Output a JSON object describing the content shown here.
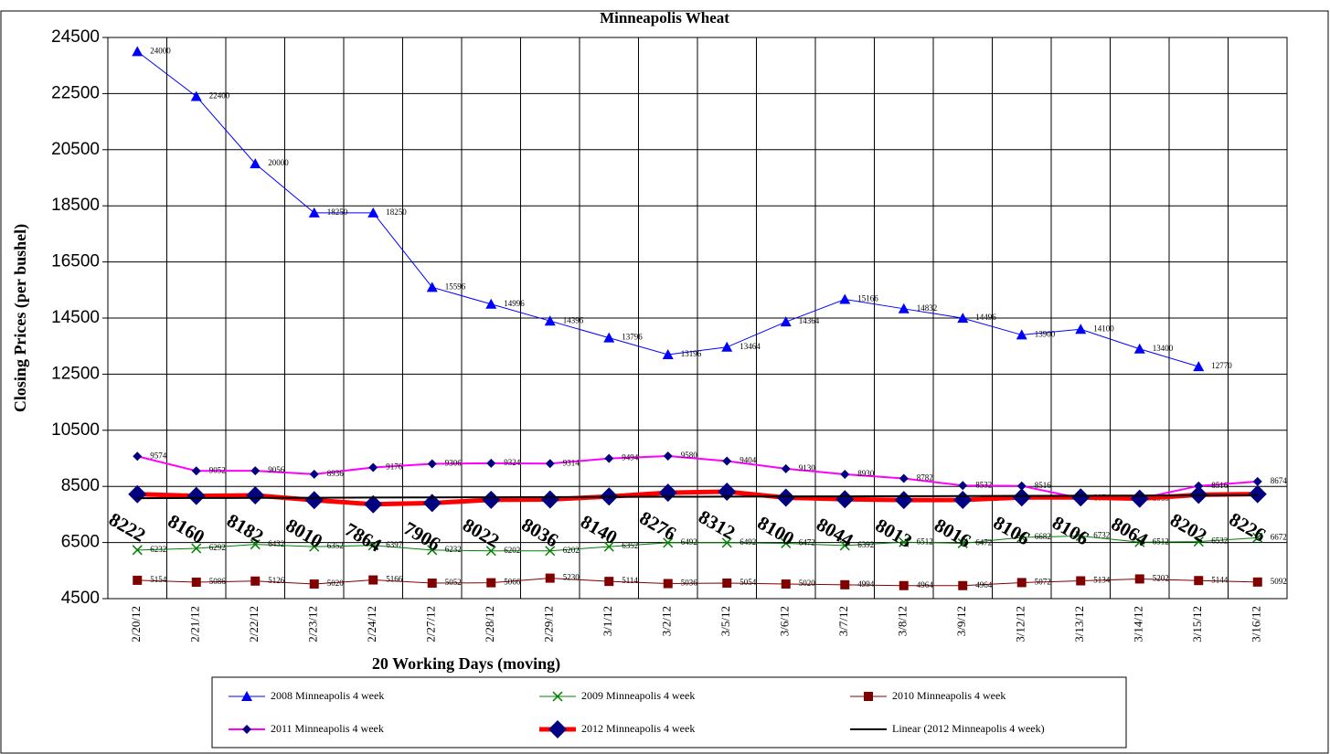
{
  "chart_data": {
    "type": "line",
    "title": "Minneapolis Wheat",
    "y_label": "Closing Prices (per bushel)",
    "x_label": "20 Working Days (moving)",
    "categories": [
      "2/20/12",
      "2/21/12",
      "2/22/12",
      "2/23/12",
      "2/24/12",
      "2/27/12",
      "2/28/12",
      "2/29/12",
      "3/1/12",
      "3/2/12",
      "3/5/12",
      "3/6/12",
      "3/7/12",
      "3/8/12",
      "3/9/12",
      "3/12/12",
      "3/13/12",
      "3/14/12",
      "3/15/12",
      "3/16/12"
    ],
    "ylim": [
      4500,
      24500
    ],
    "yticks": [
      4500,
      6500,
      8500,
      10500,
      12500,
      14500,
      16500,
      18500,
      20500,
      22500,
      24500
    ],
    "grid": true,
    "legend": "bottom",
    "series": [
      {
        "name": "2008 Minneapolis 4 week",
        "color": "#0000ff",
        "marker": "triangle",
        "line_width": 1,
        "data_labels": true,
        "values": [
          24000,
          22400,
          20000,
          18250,
          18250,
          15596,
          14996,
          14396,
          13796,
          13196,
          13464,
          14364,
          15166,
          14832,
          14496,
          13900,
          14100,
          13400,
          12770,
          null
        ]
      },
      {
        "name": "2009 Minneapolis 4 week",
        "color": "#008000",
        "marker": "x",
        "line_width": 1,
        "data_labels": true,
        "values": [
          6232,
          6292,
          6432,
          6352,
          6397,
          6232,
          6202,
          6202,
          6352,
          6492,
          6492,
          6472,
          6392,
          6512,
          6472,
          6682,
          6732,
          6512,
          6532,
          6672
        ]
      },
      {
        "name": "2010 Minneapolis 4 week",
        "color": "#800000",
        "marker": "square",
        "line_width": 1,
        "data_labels": true,
        "values": [
          5154,
          5086,
          5126,
          5020,
          5166,
          5052,
          5066,
          5230,
          5114,
          5036,
          5054,
          5020,
          4994,
          4964,
          4964,
          5072,
          5134,
          5202,
          5144,
          5092
        ]
      },
      {
        "name": "2011 Minneapolis 4 week",
        "color": "#ff00ff",
        "marker": "diamond",
        "marker_color": "#000080",
        "line_width": 2,
        "data_labels": true,
        "values": [
          9574,
          9052,
          9056,
          8936,
          9176,
          9306,
          9324,
          9314,
          9494,
          9580,
          9404,
          9130,
          8930,
          8782,
          8532,
          8516,
          8074,
          8060,
          8516,
          8674
        ]
      },
      {
        "name": "2012 Minneapolis 4 week",
        "color": "#ff0000",
        "marker": "diamond-large",
        "marker_color": "#000080",
        "line_width": 5,
        "data_labels": true,
        "large_labels": true,
        "values": [
          8222,
          8160,
          8182,
          8010,
          7864,
          7906,
          8022,
          8036,
          8140,
          8276,
          8312,
          8100,
          8044,
          8013,
          8016,
          8106,
          8106,
          8064,
          8202,
          8226
        ]
      },
      {
        "name": "Linear (2012 Minneapolis 4 week)",
        "color": "#000000",
        "marker": "none",
        "line_width": 2,
        "data_labels": false,
        "values": [
          8080,
          8086,
          8091,
          8097,
          8102,
          8108,
          8113,
          8119,
          8124,
          8130,
          8135,
          8141,
          8146,
          8152,
          8157,
          8163,
          8168,
          8174,
          8179,
          8185
        ]
      }
    ]
  }
}
